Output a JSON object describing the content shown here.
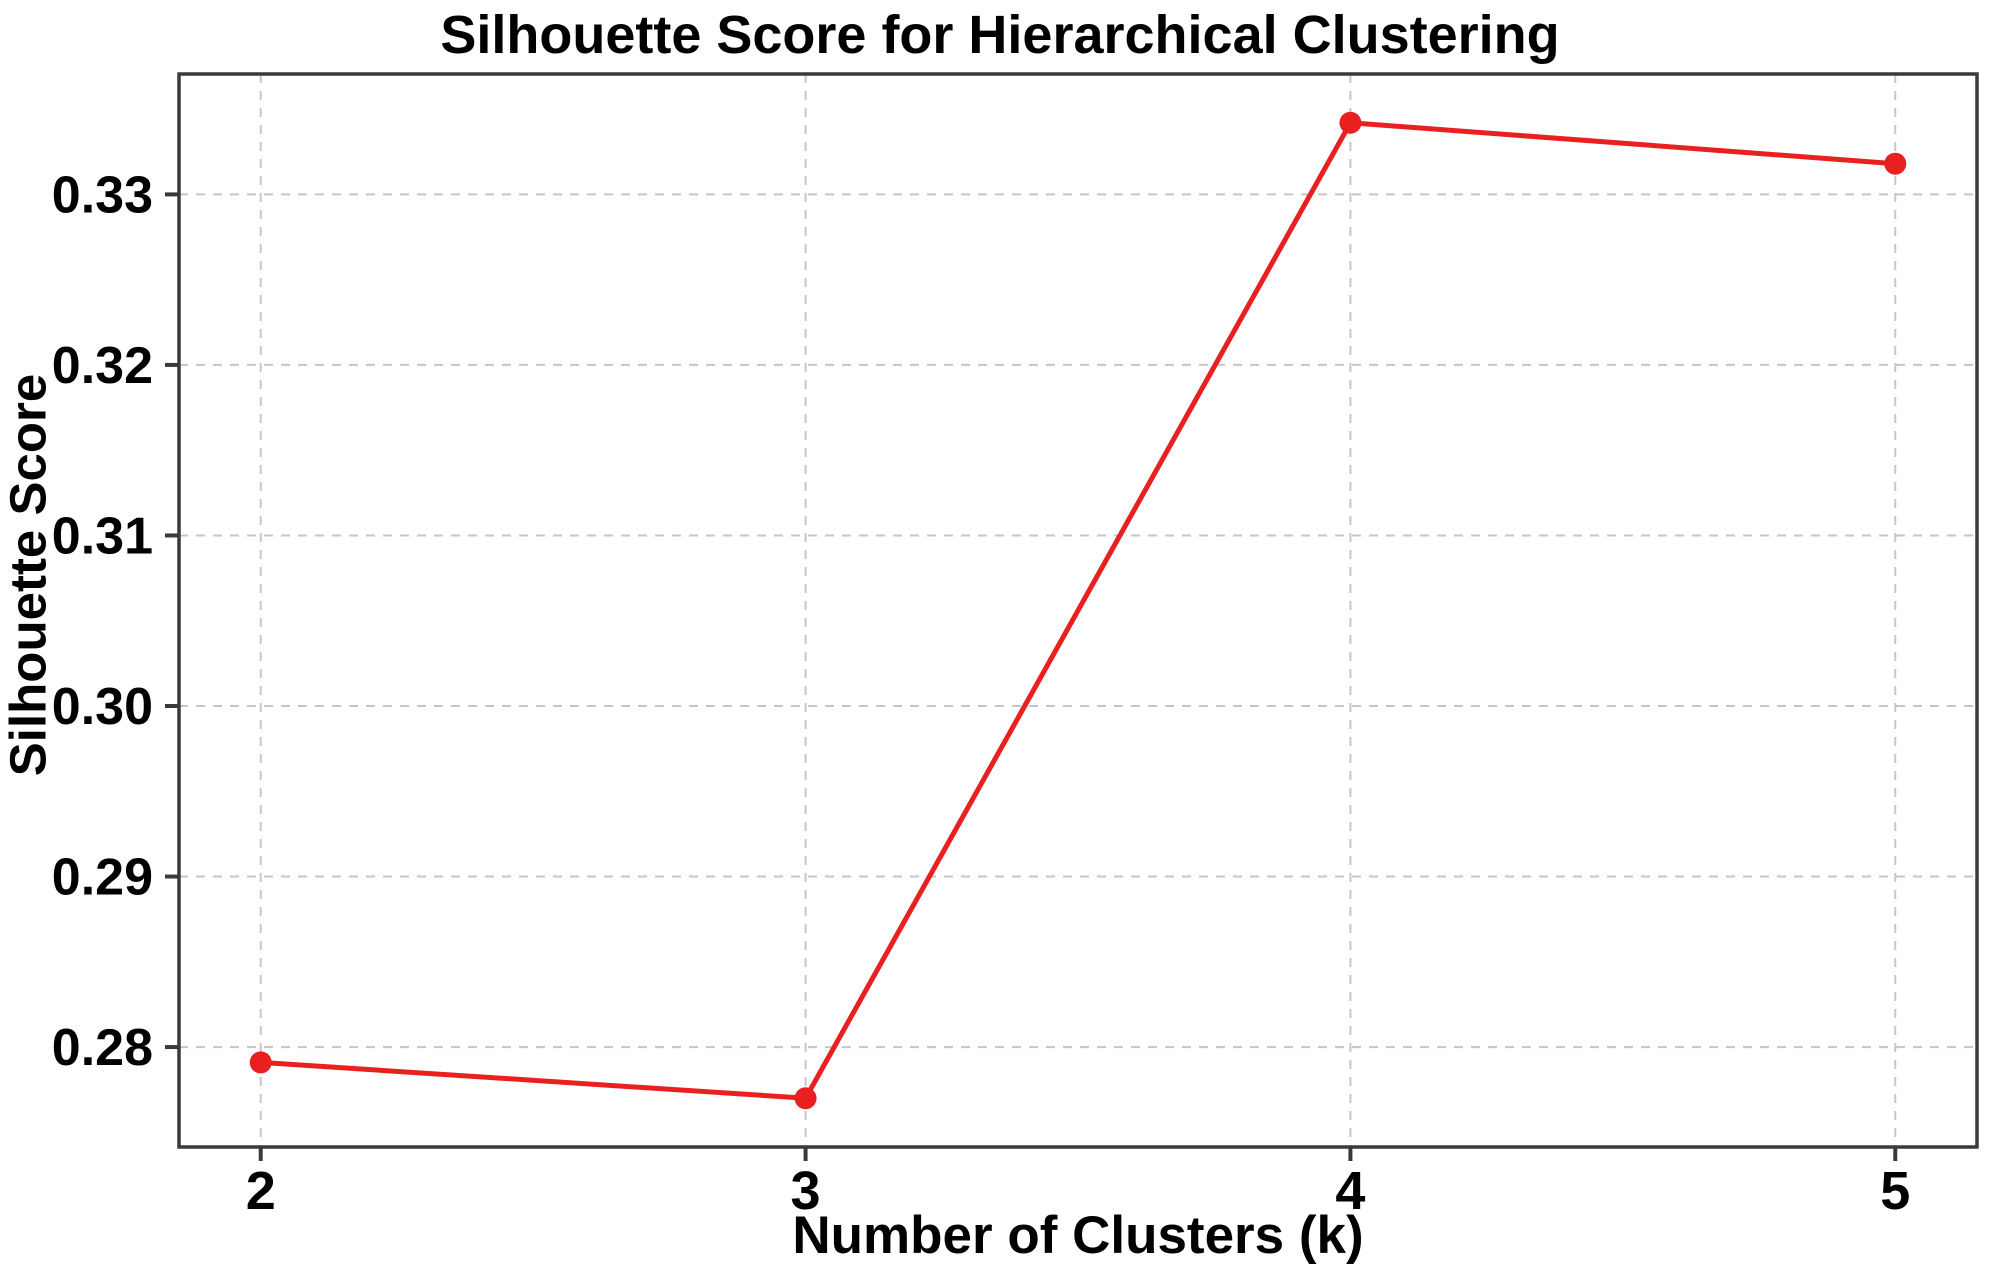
{
  "chart_data": {
    "type": "line",
    "title": "Silhouette Score for Hierarchical Clustering",
    "xlabel": "Number of Clusters (k)",
    "ylabel": "Silhouette Score",
    "x": [
      2,
      3,
      4,
      5
    ],
    "y": [
      0.2791,
      0.277,
      0.3342,
      0.3318
    ],
    "xticks": [
      "2",
      "3",
      "4",
      "5"
    ],
    "yticks": [
      "0.28",
      "0.29",
      "0.30",
      "0.31",
      "0.32",
      "0.33"
    ],
    "xlim": [
      1.85,
      5.15
    ],
    "ylim": [
      0.27414,
      0.33706
    ],
    "grid": "dashed",
    "legend_position": "none",
    "line_color": "#e92020",
    "marker": "o",
    "marker_color": "#e92020",
    "grid_color": "#c6c6c6",
    "axis_color": "#3a3a3a",
    "text_color": "#000000"
  }
}
